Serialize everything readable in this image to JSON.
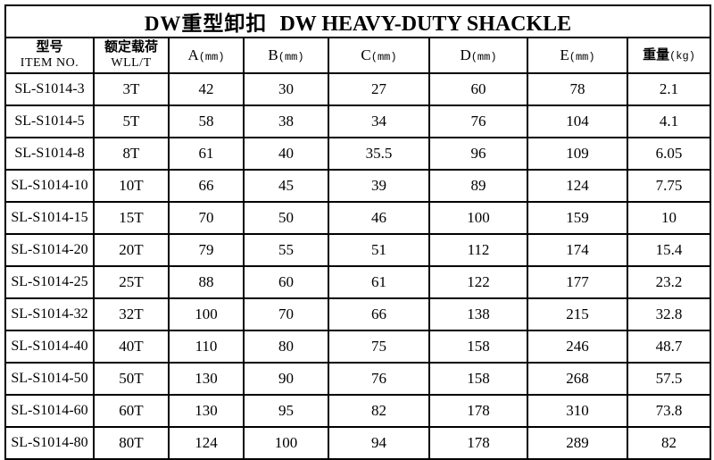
{
  "title": {
    "cn": "DW重型卸扣",
    "en": "DW HEAVY-DUTY SHACKLE"
  },
  "columns": [
    {
      "key": "item-no",
      "line1": "型号",
      "line2": "ITEM NO."
    },
    {
      "key": "wll",
      "line1": "额定载荷",
      "line2": "WLL/T"
    },
    {
      "key": "a-mm",
      "label": "A",
      "unit": "(mm)"
    },
    {
      "key": "b-mm",
      "label": "B",
      "unit": "(mm)"
    },
    {
      "key": "c-mm",
      "label": "C",
      "unit": "(mm)"
    },
    {
      "key": "d-mm",
      "label": "D",
      "unit": "(mm)"
    },
    {
      "key": "e-mm",
      "label": "E",
      "unit": "(mm)"
    },
    {
      "key": "weight-kg",
      "label": "重量",
      "unit": "(kg)"
    }
  ],
  "rows": [
    [
      "SL-S1014-3",
      "3T",
      "42",
      "30",
      "27",
      "60",
      "78",
      "2.1"
    ],
    [
      "SL-S1014-5",
      "5T",
      "58",
      "38",
      "34",
      "76",
      "104",
      "4.1"
    ],
    [
      "SL-S1014-8",
      "8T",
      "61",
      "40",
      "35.5",
      "96",
      "109",
      "6.05"
    ],
    [
      "SL-S1014-10",
      "10T",
      "66",
      "45",
      "39",
      "89",
      "124",
      "7.75"
    ],
    [
      "SL-S1014-15",
      "15T",
      "70",
      "50",
      "46",
      "100",
      "159",
      "10"
    ],
    [
      "SL-S1014-20",
      "20T",
      "79",
      "55",
      "51",
      "112",
      "174",
      "15.4"
    ],
    [
      "SL-S1014-25",
      "25T",
      "88",
      "60",
      "61",
      "122",
      "177",
      "23.2"
    ],
    [
      "SL-S1014-32",
      "32T",
      "100",
      "70",
      "66",
      "138",
      "215",
      "32.8"
    ],
    [
      "SL-S1014-40",
      "40T",
      "110",
      "80",
      "75",
      "158",
      "246",
      "48.7"
    ],
    [
      "SL-S1014-50",
      "50T",
      "130",
      "90",
      "76",
      "158",
      "268",
      "57.5"
    ],
    [
      "SL-S1014-60",
      "60T",
      "130",
      "95",
      "82",
      "178",
      "310",
      "73.8"
    ],
    [
      "SL-S1014-80",
      "80T",
      "124",
      "100",
      "94",
      "178",
      "289",
      "82"
    ]
  ],
  "colors": {
    "border": "#000000",
    "text": "#000000",
    "background": "#ffffff"
  }
}
